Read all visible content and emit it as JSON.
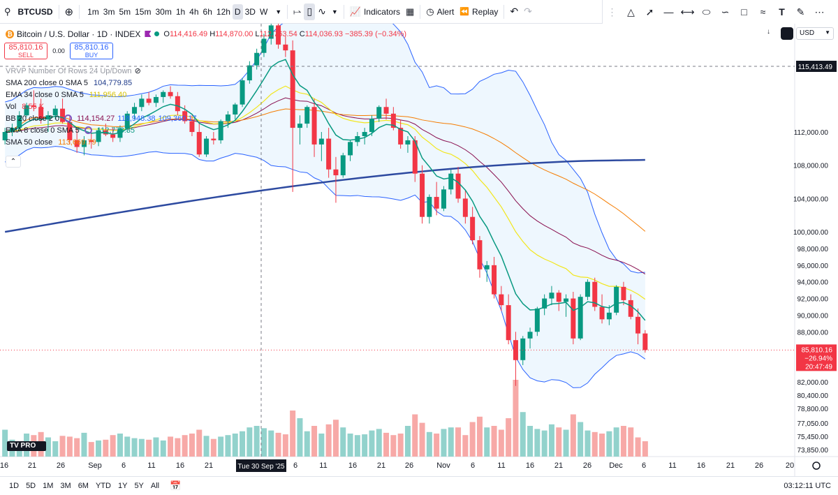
{
  "toolbar": {
    "symbol": "BTCUSD",
    "timeframes": [
      "1m",
      "3m",
      "5m",
      "15m",
      "30m",
      "1h",
      "4h",
      "6h",
      "12h",
      "D",
      "3D",
      "W"
    ],
    "active_timeframe": "D",
    "indicators_label": "Indicators",
    "alert_label": "Alert",
    "replay_label": "Replay"
  },
  "legend": {
    "title": "Bitcoin / U.S. Dollar · 1D · INDEX",
    "ohlc": [
      {
        "l": "O",
        "v": "114,416.49"
      },
      {
        "l": "H",
        "v": "114,870.00"
      },
      {
        "l": "L",
        "v": "112,763.54"
      },
      {
        "l": "C",
        "v": "114,036.93"
      },
      {
        "l": "",
        "v": "−385.39 (−0.34%)"
      }
    ],
    "sell_price": "85,810.16",
    "sell_label": "SELL",
    "spread": "0.00",
    "buy_price": "85,810.16",
    "buy_label": "BUY",
    "indicators": [
      {
        "label": "VRVP Number Of Rows 24 Up/Down",
        "values": [],
        "faded": true
      },
      {
        "label": "SMA 200 close 0 SMA 5",
        "values": [
          {
            "v": "104,779.85",
            "c": "#1e3a8a"
          }
        ]
      },
      {
        "label": "EMA 34 close 0 SMA 5",
        "values": [
          {
            "v": "111,956.40",
            "c": "#d4c000"
          }
        ]
      },
      {
        "label": "Vol",
        "values": [
          {
            "v": "8.55 K",
            "c": "#f23645"
          }
        ]
      },
      {
        "label": "BB 20 close 2 0",
        "values": [
          {
            "v": "114,154.27",
            "c": "#880e4f"
          },
          {
            "v": "118,948.38",
            "c": "#2962ff"
          },
          {
            "v": "109,360.17",
            "c": "#2962ff"
          }
        ],
        "cog": true
      },
      {
        "label": "EMA 8 close 0 SMA 5",
        "values": [
          {
            "v": "112,773.35",
            "c": "#089981"
          }
        ],
        "cog": true
      },
      {
        "label": "SMA 50 close",
        "values": [
          {
            "v": "113,669.79",
            "c": "#f57c00"
          }
        ]
      }
    ]
  },
  "price_scale": {
    "currency": "USD",
    "ticks": [
      "112,000.00",
      "108,000.00",
      "104,000.00",
      "100,000.00",
      "98,000.00",
      "96,000.00",
      "94,000.00",
      "92,000.00",
      "90,000.00",
      "88,000.00",
      "82,000.00",
      "80,400.00",
      "78,800.00",
      "77,050.00",
      "75,450.00",
      "73,850.00"
    ],
    "crosshair_price": "115,413.49",
    "last_price": "85,810.16",
    "last_change": "−26.94%",
    "countdown": "20:47:49"
  },
  "time_scale": {
    "ticks": [
      "16",
      "21",
      "26",
      "Sep",
      "6",
      "11",
      "16",
      "21",
      "6",
      "11",
      "16",
      "21",
      "26",
      "Nov",
      "6",
      "11",
      "16",
      "21",
      "26",
      "Dec",
      "6",
      "11",
      "16",
      "21",
      "26",
      "20"
    ],
    "crosshair_date": "Tue 30 Sep '25"
  },
  "bottom": {
    "ranges": [
      "1D",
      "5D",
      "1M",
      "3M",
      "6M",
      "YTD",
      "1Y",
      "5Y",
      "All"
    ],
    "clock": "03:12:11 UTC"
  },
  "logo_text": "TV PRO",
  "chart_data": {
    "type": "candlestick",
    "colors": {
      "up": "#089981",
      "down": "#f23645",
      "sma200": "#2d4aa0",
      "ema34": "#880e4f",
      "sma50": "#f57c00",
      "ema8": "#089981",
      "bb": "#2962ff",
      "bbfill": "#e3f2fd",
      "yellow": "#f2e61b"
    },
    "candles": [
      [
        111000,
        112500,
        110500,
        112000
      ],
      [
        112000,
        113000,
        111500,
        112500
      ],
      [
        112500,
        114500,
        112000,
        114000
      ],
      [
        114000,
        115500,
        113800,
        115200
      ],
      [
        115200,
        117000,
        114500,
        115000
      ],
      [
        115000,
        116000,
        113000,
        113500
      ],
      [
        113500,
        114500,
        112000,
        114000
      ],
      [
        114000,
        115200,
        113500,
        114800
      ],
      [
        114800,
        116000,
        113000,
        113200
      ],
      [
        113200,
        114000,
        110500,
        111000
      ],
      [
        111000,
        112500,
        109500,
        110200
      ],
      [
        110200,
        111500,
        109200,
        111000
      ],
      [
        111000,
        112000,
        110000,
        110800
      ],
      [
        110800,
        112500,
        110300,
        112200
      ],
      [
        112200,
        113000,
        111500,
        111700
      ],
      [
        111700,
        112500,
        110800,
        111300
      ],
      [
        111300,
        112800,
        110800,
        112400
      ],
      [
        112400,
        114500,
        112000,
        114200
      ],
      [
        114200,
        115500,
        113500,
        115000
      ],
      [
        115000,
        116500,
        114500,
        116000
      ],
      [
        116000,
        116800,
        115200,
        115500
      ],
      [
        115500,
        116500,
        115000,
        116200
      ],
      [
        116200,
        117000,
        115500,
        116800
      ],
      [
        116800,
        117500,
        116000,
        116300
      ],
      [
        116300,
        116800,
        114000,
        114500
      ],
      [
        114500,
        115200,
        113000,
        113300
      ],
      [
        113300,
        114000,
        111500,
        112000
      ],
      [
        112000,
        113000,
        109000,
        109300
      ],
      [
        109300,
        111500,
        109000,
        111200
      ],
      [
        111200,
        112000,
        110500,
        111000
      ],
      [
        111000,
        113500,
        110600,
        113300
      ],
      [
        113300,
        114500,
        112500,
        114100
      ],
      [
        114100,
        115500,
        113500,
        115300
      ],
      [
        115300,
        118500,
        115000,
        118200
      ],
      [
        118200,
        120500,
        117800,
        120000
      ],
      [
        120000,
        122000,
        119500,
        121500
      ],
      [
        121500,
        123800,
        121000,
        123200
      ],
      [
        123200,
        125500,
        122500,
        124800
      ],
      [
        124800,
        126000,
        122000,
        122500
      ],
      [
        122500,
        123500,
        121000,
        121800
      ],
      [
        121800,
        123000,
        104800,
        112500
      ],
      [
        112500,
        114000,
        110500,
        113000
      ],
      [
        113000,
        115200,
        112500,
        115000
      ],
      [
        115000,
        116000,
        109000,
        110500
      ],
      [
        110500,
        112000,
        108500,
        111200
      ],
      [
        111200,
        112500,
        106500,
        107500
      ],
      [
        107500,
        109000,
        103500,
        106800
      ],
      [
        106800,
        109500,
        106500,
        109200
      ],
      [
        109200,
        111000,
        108500,
        110800
      ],
      [
        110800,
        112000,
        110300,
        111500
      ],
      [
        111500,
        112500,
        110500,
        112000
      ],
      [
        112000,
        114000,
        111500,
        113600
      ],
      [
        113600,
        115200,
        113200,
        115000
      ],
      [
        115000,
        116000,
        113500,
        114200
      ],
      [
        114200,
        115000,
        112200,
        112500
      ],
      [
        112500,
        113500,
        110000,
        110500
      ],
      [
        110500,
        111500,
        109500,
        111000
      ],
      [
        111000,
        111500,
        106000,
        107000
      ],
      [
        107000,
        108000,
        101000,
        101800
      ],
      [
        101800,
        104500,
        101000,
        104200
      ],
      [
        104200,
        106000,
        102000,
        102800
      ],
      [
        102800,
        105500,
        102500,
        105100
      ],
      [
        105100,
        107500,
        104500,
        107000
      ],
      [
        107000,
        107800,
        103500,
        104000
      ],
      [
        104000,
        105000,
        101000,
        101800
      ],
      [
        101800,
        103000,
        98500,
        99000
      ],
      [
        99000,
        99500,
        94500,
        95500
      ],
      [
        95500,
        96500,
        94000,
        96000
      ],
      [
        96000,
        97000,
        92000,
        92500
      ],
      [
        92500,
        93500,
        90500,
        91200
      ],
      [
        91200,
        92500,
        86500,
        87000
      ],
      [
        87000,
        88000,
        81500,
        84600
      ],
      [
        84600,
        87500,
        84000,
        87200
      ],
      [
        87200,
        88500,
        86000,
        88000
      ],
      [
        88000,
        91000,
        87500,
        90800
      ],
      [
        90800,
        92500,
        90000,
        92000
      ],
      [
        92000,
        93500,
        91200,
        92700
      ],
      [
        92700,
        93000,
        90500,
        91600
      ],
      [
        91600,
        92500,
        89800,
        92000
      ],
      [
        92000,
        92800,
        86500,
        87200
      ],
      [
        87200,
        92500,
        87000,
        92200
      ],
      [
        92200,
        94300,
        91800,
        94000
      ],
      [
        94000,
        94500,
        90500,
        91000
      ],
      [
        91000,
        92500,
        89000,
        89500
      ],
      [
        89500,
        91200,
        88800,
        90300
      ],
      [
        90300,
        93600,
        90000,
        93400
      ],
      [
        93400,
        94000,
        91200,
        91800
      ],
      [
        91800,
        92500,
        89500,
        89800
      ],
      [
        89800,
        90800,
        86500,
        87800
      ],
      [
        87800,
        88200,
        85500,
        85810
      ]
    ],
    "volumes": [
      35,
      22,
      18,
      30,
      28,
      32,
      25,
      20,
      27,
      26,
      24,
      31,
      19,
      21,
      22,
      28,
      30,
      26,
      24,
      23,
      22,
      25,
      21,
      26,
      24,
      28,
      30,
      35,
      27,
      23,
      26,
      28,
      30,
      33,
      38,
      40,
      37,
      34,
      31,
      29,
      60,
      50,
      33,
      40,
      30,
      42,
      48,
      38,
      30,
      28,
      29,
      34,
      36,
      31,
      28,
      30,
      40,
      55,
      44,
      32,
      30,
      36,
      38,
      38,
      28,
      45,
      52,
      38,
      40,
      35,
      50,
      100,
      58,
      40,
      36,
      34,
      42,
      38,
      35,
      55,
      45,
      34,
      32,
      30,
      33,
      38,
      40,
      38,
      25,
      20
    ],
    "ylim": [
      73850,
      125000
    ]
  }
}
